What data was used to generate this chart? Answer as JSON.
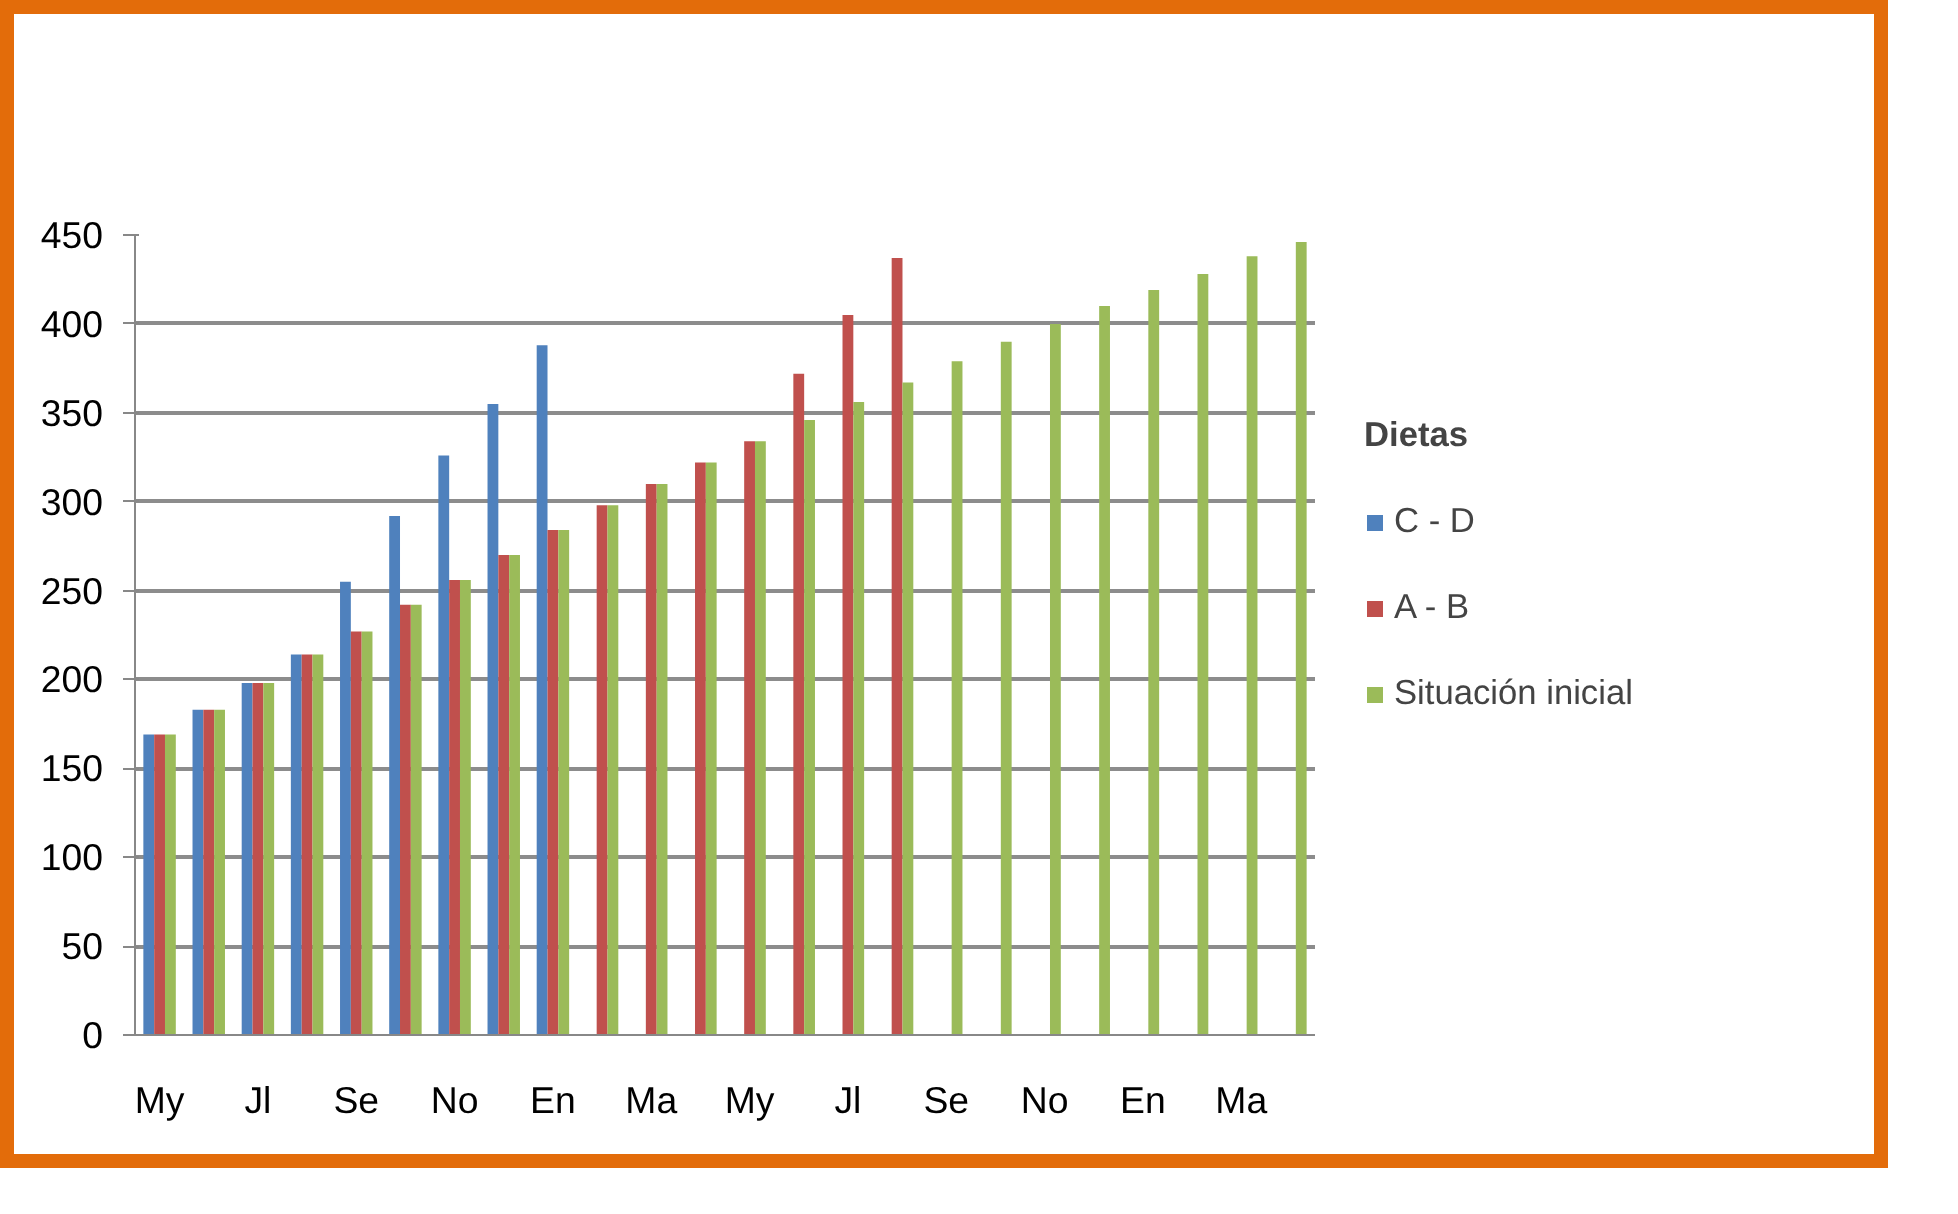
{
  "chart_data": {
    "type": "bar",
    "categories": [
      "My",
      null,
      "Jl",
      null,
      "Se",
      null,
      "No",
      null,
      "En",
      null,
      "Ma",
      null,
      "My",
      null,
      "Jl",
      null,
      "Se",
      null,
      "No",
      null,
      "En",
      null,
      "Ma",
      null
    ],
    "series": [
      {
        "name": "C - D",
        "color": "#4f81bd",
        "values": [
          169,
          183,
          198,
          214,
          255,
          292,
          326,
          355,
          388,
          null,
          null,
          null,
          null,
          null,
          null,
          null,
          null,
          null,
          null,
          null,
          null,
          null,
          null,
          null
        ]
      },
      {
        "name": "A - B",
        "color": "#c0504d",
        "values": [
          169,
          183,
          198,
          214,
          227,
          242,
          256,
          270,
          284,
          298,
          310,
          322,
          334,
          372,
          405,
          437,
          null,
          null,
          null,
          null,
          null,
          null,
          null,
          null
        ]
      },
      {
        "name": "Situación inicial",
        "color": "#9bbb59",
        "values": [
          169,
          183,
          198,
          214,
          227,
          242,
          256,
          270,
          284,
          298,
          310,
          322,
          334,
          346,
          356,
          367,
          379,
          390,
          400,
          410,
          419,
          428,
          438,
          446
        ]
      }
    ],
    "legend_title": "Dietas",
    "ylim": [
      0,
      450
    ],
    "yticks": [
      0,
      50,
      100,
      150,
      200,
      250,
      300,
      350,
      400,
      450
    ],
    "grid": "y",
    "legend": "right"
  }
}
